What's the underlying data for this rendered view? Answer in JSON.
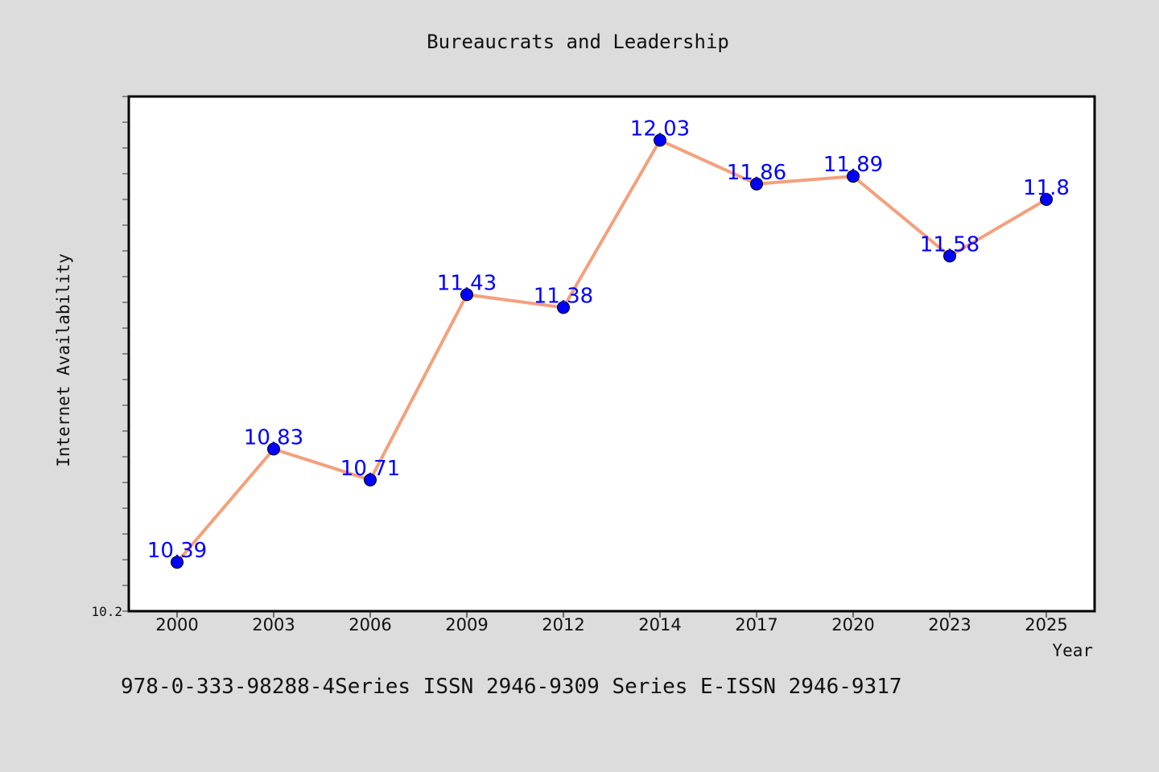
{
  "chart_data": {
    "type": "line",
    "title": "Bureaucrats and Leadership",
    "xlabel": "Year",
    "ylabel": "Internet Availability",
    "categories": [
      "2000",
      "2003",
      "2006",
      "2009",
      "2012",
      "2014",
      "2017",
      "2020",
      "2023",
      "2025"
    ],
    "values": [
      10.39,
      10.83,
      10.71,
      11.43,
      11.38,
      12.03,
      11.86,
      11.89,
      11.58,
      11.8
    ],
    "data_labels": [
      "10.39",
      "10.83",
      "10.71",
      "11.43",
      "11.38",
      "12.03",
      "11.86",
      "11.89",
      "11.58",
      "11.8"
    ],
    "ylim": [
      10.2,
      12.2
    ],
    "y_tick_label": "10.2",
    "grid": false,
    "line_color": "#f4a07c",
    "marker_color": "#0000ff",
    "label_color": "#0000ff"
  },
  "footer_text": "978-0-333-98288-4Series ISSN 2946-9309 Series E-ISSN 2946-9317"
}
